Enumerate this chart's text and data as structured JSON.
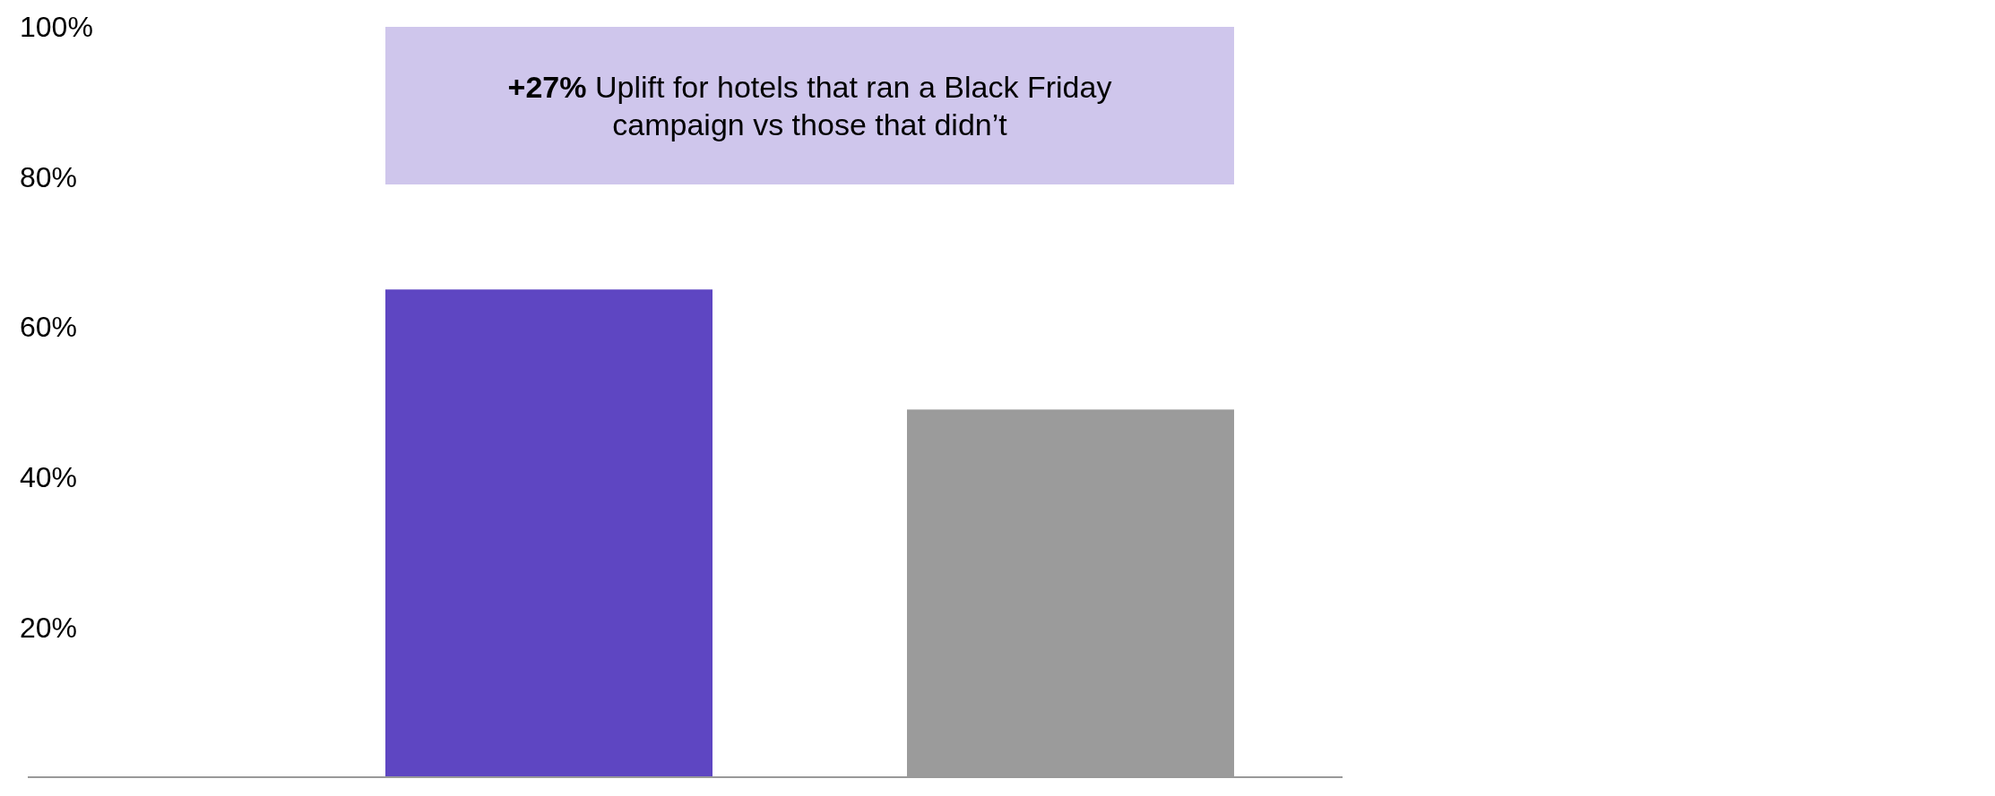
{
  "chart_data": {
    "type": "bar",
    "categories": [
      null,
      null
    ],
    "values": [
      65,
      49
    ],
    "colors": [
      "#5e46c2",
      "#9b9b9b"
    ],
    "ylim": [
      0,
      100
    ],
    "yticks": [
      {
        "value": 20,
        "label": "20%"
      },
      {
        "value": 40,
        "label": "40%"
      },
      {
        "value": 60,
        "label": "60%"
      },
      {
        "value": 80,
        "label": "80%"
      },
      {
        "value": 100,
        "label": "100%"
      }
    ],
    "grid": false,
    "annotations": [
      "+27% Uplift for hotels that ran a Black Friday campaign vs those that didn’t"
    ]
  }
}
